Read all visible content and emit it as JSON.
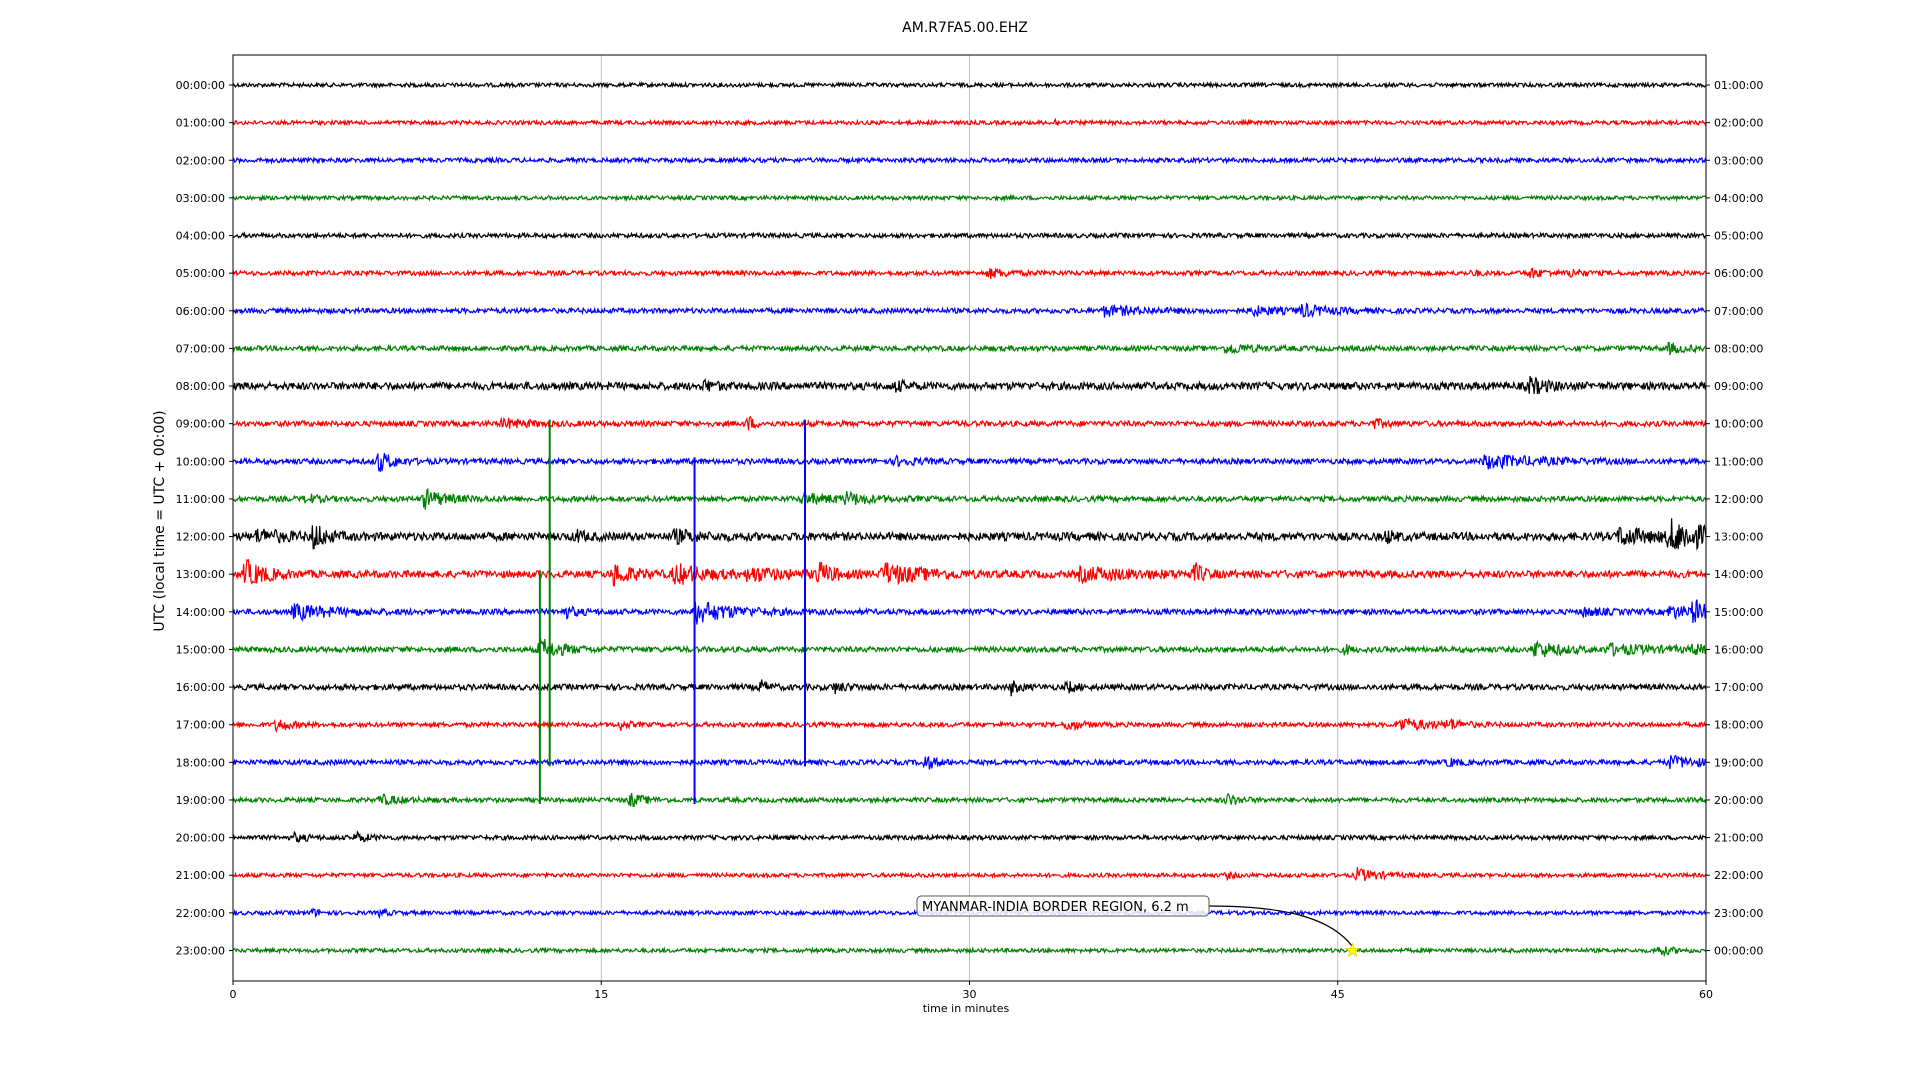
{
  "chart_data": {
    "type": "line",
    "title": "AM.R7FA5.00.EHZ",
    "xlabel": "time in minutes",
    "ylabel": "UTC (local time = UTC + 00:00)",
    "xlim": [
      0,
      60
    ],
    "x_ticks": [
      "0",
      "15",
      "30",
      "45",
      "60"
    ],
    "x_tick_values": [
      0,
      15,
      30,
      45,
      60
    ],
    "grid": "vertical at x ticks",
    "colors": [
      "#000000",
      "#ff0000",
      "#0000ff",
      "#008000"
    ],
    "left_tick_labels": [
      "00:00:00",
      "01:00:00",
      "02:00:00",
      "03:00:00",
      "04:00:00",
      "05:00:00",
      "06:00:00",
      "07:00:00",
      "08:00:00",
      "09:00:00",
      "10:00:00",
      "11:00:00",
      "12:00:00",
      "13:00:00",
      "14:00:00",
      "15:00:00",
      "16:00:00",
      "17:00:00",
      "18:00:00",
      "19:00:00",
      "20:00:00",
      "21:00:00",
      "22:00:00",
      "23:00:00"
    ],
    "right_tick_labels": [
      "01:00:00",
      "02:00:00",
      "03:00:00",
      "04:00:00",
      "05:00:00",
      "06:00:00",
      "07:00:00",
      "08:00:00",
      "09:00:00",
      "10:00:00",
      "11:00:00",
      "12:00:00",
      "13:00:00",
      "14:00:00",
      "15:00:00",
      "16:00:00",
      "17:00:00",
      "18:00:00",
      "19:00:00",
      "20:00:00",
      "21:00:00",
      "22:00:00",
      "23:00:00",
      "00:00:00"
    ],
    "traces": [
      {
        "noise": 0.22,
        "events": []
      },
      {
        "noise": 0.22,
        "events": [
          {
            "t": 33.5,
            "amp": 0.3,
            "dur": 0.2
          }
        ]
      },
      {
        "noise": 0.25,
        "events": []
      },
      {
        "noise": 0.22,
        "events": []
      },
      {
        "noise": 0.25,
        "events": []
      },
      {
        "noise": 0.25,
        "events": [
          {
            "t": 30.8,
            "amp": 0.45,
            "dur": 0.8
          },
          {
            "t": 52.8,
            "amp": 0.5,
            "dur": 0.6
          },
          {
            "t": 54.5,
            "amp": 0.4,
            "dur": 0.5
          },
          {
            "t": 50.5,
            "amp": 0.3,
            "dur": 0.3
          }
        ]
      },
      {
        "noise": 0.28,
        "events": [
          {
            "t": 35.5,
            "amp": 0.5,
            "dur": 1.5
          },
          {
            "t": 43.5,
            "amp": 0.6,
            "dur": 1.0
          },
          {
            "t": 41.5,
            "amp": 0.45,
            "dur": 1.0
          }
        ]
      },
      {
        "noise": 0.28,
        "events": [
          {
            "t": 40.5,
            "amp": 0.55,
            "dur": 0.8
          },
          {
            "t": 58.5,
            "amp": 0.5,
            "dur": 0.6
          }
        ]
      },
      {
        "noise": 0.42,
        "events": [
          {
            "t": 52.8,
            "amp": 0.9,
            "dur": 0.6
          },
          {
            "t": 19.2,
            "amp": 0.5,
            "dur": 0.5
          },
          {
            "t": 27.0,
            "amp": 0.45,
            "dur": 0.4
          }
        ]
      },
      {
        "noise": 0.3,
        "events": [
          {
            "t": 21.0,
            "amp": 0.8,
            "dur": 0.2
          },
          {
            "t": 11.0,
            "amp": 0.45,
            "dur": 1.0
          },
          {
            "t": 46.5,
            "amp": 0.4,
            "dur": 0.5
          }
        ]
      },
      {
        "noise": 0.3,
        "events": [
          {
            "t": 5.9,
            "amp": 1.1,
            "dur": 0.6
          },
          {
            "t": 51.0,
            "amp": 0.7,
            "dur": 2.0
          },
          {
            "t": 27.0,
            "amp": 0.4,
            "dur": 0.8
          }
        ]
      },
      {
        "noise": 0.3,
        "events": [
          {
            "t": 7.8,
            "amp": 1.0,
            "dur": 0.8
          },
          {
            "t": 3.0,
            "amp": 0.5,
            "dur": 0.4
          },
          {
            "t": 23.2,
            "amp": 0.5,
            "dur": 1.5
          },
          {
            "t": 25.0,
            "amp": 0.5,
            "dur": 0.8
          }
        ]
      },
      {
        "noise": 0.45,
        "events": [
          {
            "t": 3.3,
            "amp": 1.4,
            "dur": 0.4
          },
          {
            "t": 1.0,
            "amp": 0.6,
            "dur": 1.2
          },
          {
            "t": 58.5,
            "amp": 1.5,
            "dur": 2.0
          },
          {
            "t": 56.5,
            "amp": 0.9,
            "dur": 1.2
          },
          {
            "t": 18.0,
            "amp": 0.6,
            "dur": 0.8
          },
          {
            "t": 14.0,
            "amp": 0.6,
            "dur": 0.3
          },
          {
            "t": 47.0,
            "amp": 0.6,
            "dur": 0.3
          }
        ]
      },
      {
        "noise": 0.4,
        "events": [
          {
            "t": 0.5,
            "amp": 1.4,
            "dur": 0.8
          },
          {
            "t": 15.5,
            "amp": 1.1,
            "dur": 0.8
          },
          {
            "t": 18.0,
            "amp": 1.0,
            "dur": 1.2
          },
          {
            "t": 23.8,
            "amp": 1.2,
            "dur": 0.6
          },
          {
            "t": 26.5,
            "amp": 1.1,
            "dur": 1.5
          },
          {
            "t": 39.2,
            "amp": 1.0,
            "dur": 0.3
          },
          {
            "t": 34.5,
            "amp": 0.6,
            "dur": 2.5
          },
          {
            "t": 21.0,
            "amp": 0.7,
            "dur": 1.2
          }
        ]
      },
      {
        "noise": 0.3,
        "events": [
          {
            "t": 2.5,
            "amp": 0.8,
            "dur": 1.5
          },
          {
            "t": 18.8,
            "amp": 1.2,
            "dur": 1.5
          },
          {
            "t": 13.5,
            "amp": 0.6,
            "dur": 0.5
          },
          {
            "t": 59.5,
            "amp": 1.2,
            "dur": 0.4
          },
          {
            "t": 58.5,
            "amp": 0.6,
            "dur": 1.2
          },
          {
            "t": 55.0,
            "amp": 0.4,
            "dur": 0.8
          }
        ]
      },
      {
        "noise": 0.3,
        "events": [
          {
            "t": 12.5,
            "amp": 1.2,
            "dur": 0.8
          },
          {
            "t": 53.0,
            "amp": 0.9,
            "dur": 1.0
          },
          {
            "t": 56.0,
            "amp": 0.5,
            "dur": 2.0
          },
          {
            "t": 59.5,
            "amp": 0.5,
            "dur": 0.4
          },
          {
            "t": 45.3,
            "amp": 0.5,
            "dur": 0.2
          }
        ]
      },
      {
        "noise": 0.32,
        "events": [
          {
            "t": 21.5,
            "amp": 0.6,
            "dur": 0.3
          },
          {
            "t": 31.7,
            "amp": 0.7,
            "dur": 0.3
          },
          {
            "t": 34.0,
            "amp": 0.6,
            "dur": 0.3
          },
          {
            "t": 24.5,
            "amp": 0.5,
            "dur": 0.5
          }
        ]
      },
      {
        "noise": 0.25,
        "events": [
          {
            "t": 1.8,
            "amp": 0.7,
            "dur": 0.5
          },
          {
            "t": 34.0,
            "amp": 0.6,
            "dur": 0.5
          },
          {
            "t": 47.5,
            "amp": 0.7,
            "dur": 1.2
          },
          {
            "t": 49.5,
            "amp": 0.5,
            "dur": 0.5
          },
          {
            "t": 15.8,
            "amp": 0.5,
            "dur": 0.3
          }
        ]
      },
      {
        "noise": 0.28,
        "events": [
          {
            "t": 28.2,
            "amp": 0.8,
            "dur": 0.4
          },
          {
            "t": 58.5,
            "amp": 0.6,
            "dur": 1.2
          },
          {
            "t": 49.5,
            "amp": 0.4,
            "dur": 0.4
          }
        ]
      },
      {
        "noise": 0.25,
        "events": [
          {
            "t": 6.0,
            "amp": 0.5,
            "dur": 0.8
          },
          {
            "t": 16.2,
            "amp": 0.7,
            "dur": 0.5
          },
          {
            "t": 40.5,
            "amp": 0.6,
            "dur": 0.5
          }
        ]
      },
      {
        "noise": 0.25,
        "events": [
          {
            "t": 5.0,
            "amp": 0.5,
            "dur": 0.5
          },
          {
            "t": 2.5,
            "amp": 0.4,
            "dur": 0.5
          }
        ]
      },
      {
        "noise": 0.22,
        "events": [
          {
            "t": 45.8,
            "amp": 0.7,
            "dur": 0.8
          },
          {
            "t": 40.5,
            "amp": 0.3,
            "dur": 0.3
          }
        ]
      },
      {
        "noise": 0.22,
        "events": [
          {
            "t": 3.2,
            "amp": 0.4,
            "dur": 0.3
          },
          {
            "t": 6.0,
            "amp": 0.4,
            "dur": 0.3
          }
        ]
      },
      {
        "noise": 0.22,
        "events": [
          {
            "t": 58.0,
            "amp": 0.5,
            "dur": 0.6
          }
        ]
      }
    ],
    "spikes": [
      {
        "t": 12.5,
        "from_row": 13,
        "to_row": 19,
        "color": "#008000"
      },
      {
        "t": 12.9,
        "from_row": 9,
        "to_row": 18,
        "color": "#008000"
      },
      {
        "t": 18.8,
        "from_row": 10,
        "to_row": 19,
        "color": "#0000ff"
      },
      {
        "t": 23.3,
        "from_row": 9,
        "to_row": 18,
        "color": "#0000ff"
      }
    ],
    "annotation": {
      "text": "MYANMAR-INDIA BORDER REGION, 6.2 m",
      "row": 23,
      "t": 45.6,
      "marker": "star",
      "marker_color": "#ffff00"
    }
  }
}
